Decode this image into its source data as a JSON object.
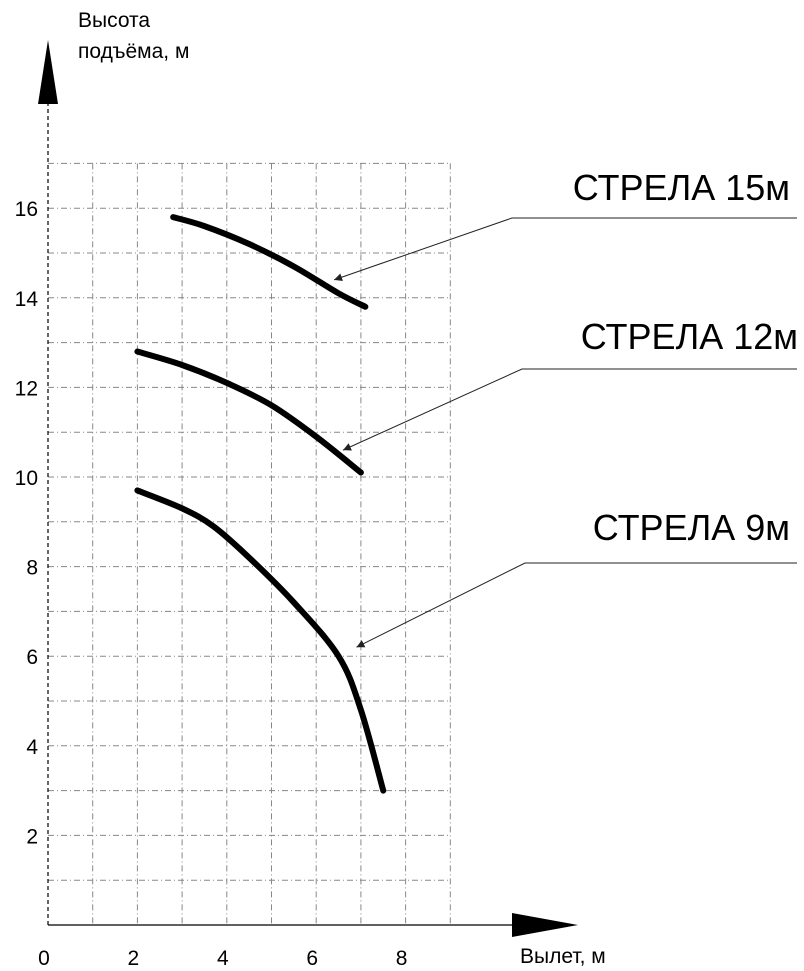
{
  "chart_data": {
    "type": "line",
    "ylabel_line1": "Высота",
    "ylabel_line2": "подъёма, м",
    "xlabel": "Вылет, м",
    "xlim": [
      0,
      9
    ],
    "ylim": [
      0,
      17
    ],
    "x_ticks": [
      "0",
      "2",
      "4",
      "6",
      "8"
    ],
    "y_ticks": [
      "2",
      "4",
      "6",
      "8",
      "10",
      "12",
      "14",
      "16"
    ],
    "grid": true,
    "series": [
      {
        "name": "СТРЕЛА 15м",
        "points": [
          [
            2.8,
            15.8
          ],
          [
            3.5,
            15.6
          ],
          [
            4.5,
            15.2
          ],
          [
            5.5,
            14.7
          ],
          [
            6.5,
            14.1
          ],
          [
            7.1,
            13.8
          ]
        ]
      },
      {
        "name": "СТРЕЛА 12м",
        "points": [
          [
            2.0,
            12.8
          ],
          [
            3.0,
            12.5
          ],
          [
            4.0,
            12.1
          ],
          [
            5.0,
            11.6
          ],
          [
            6.0,
            10.9
          ],
          [
            7.0,
            10.1
          ]
        ]
      },
      {
        "name": "СТРЕЛА 9м",
        "points": [
          [
            2.0,
            9.7
          ],
          [
            3.0,
            9.3
          ],
          [
            3.7,
            8.9
          ],
          [
            4.5,
            8.2
          ],
          [
            5.5,
            7.2
          ],
          [
            6.5,
            6.0
          ],
          [
            7.0,
            4.8
          ],
          [
            7.5,
            3.0
          ]
        ]
      }
    ]
  }
}
